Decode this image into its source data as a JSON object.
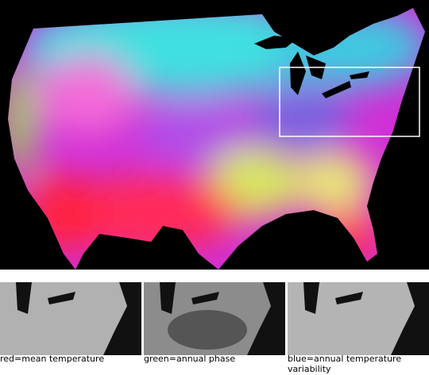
{
  "panels": [
    {
      "caption": "red=mean temperature"
    },
    {
      "caption": "green=annual phase"
    },
    {
      "caption": "blue=annual temperature variability"
    }
  ]
}
